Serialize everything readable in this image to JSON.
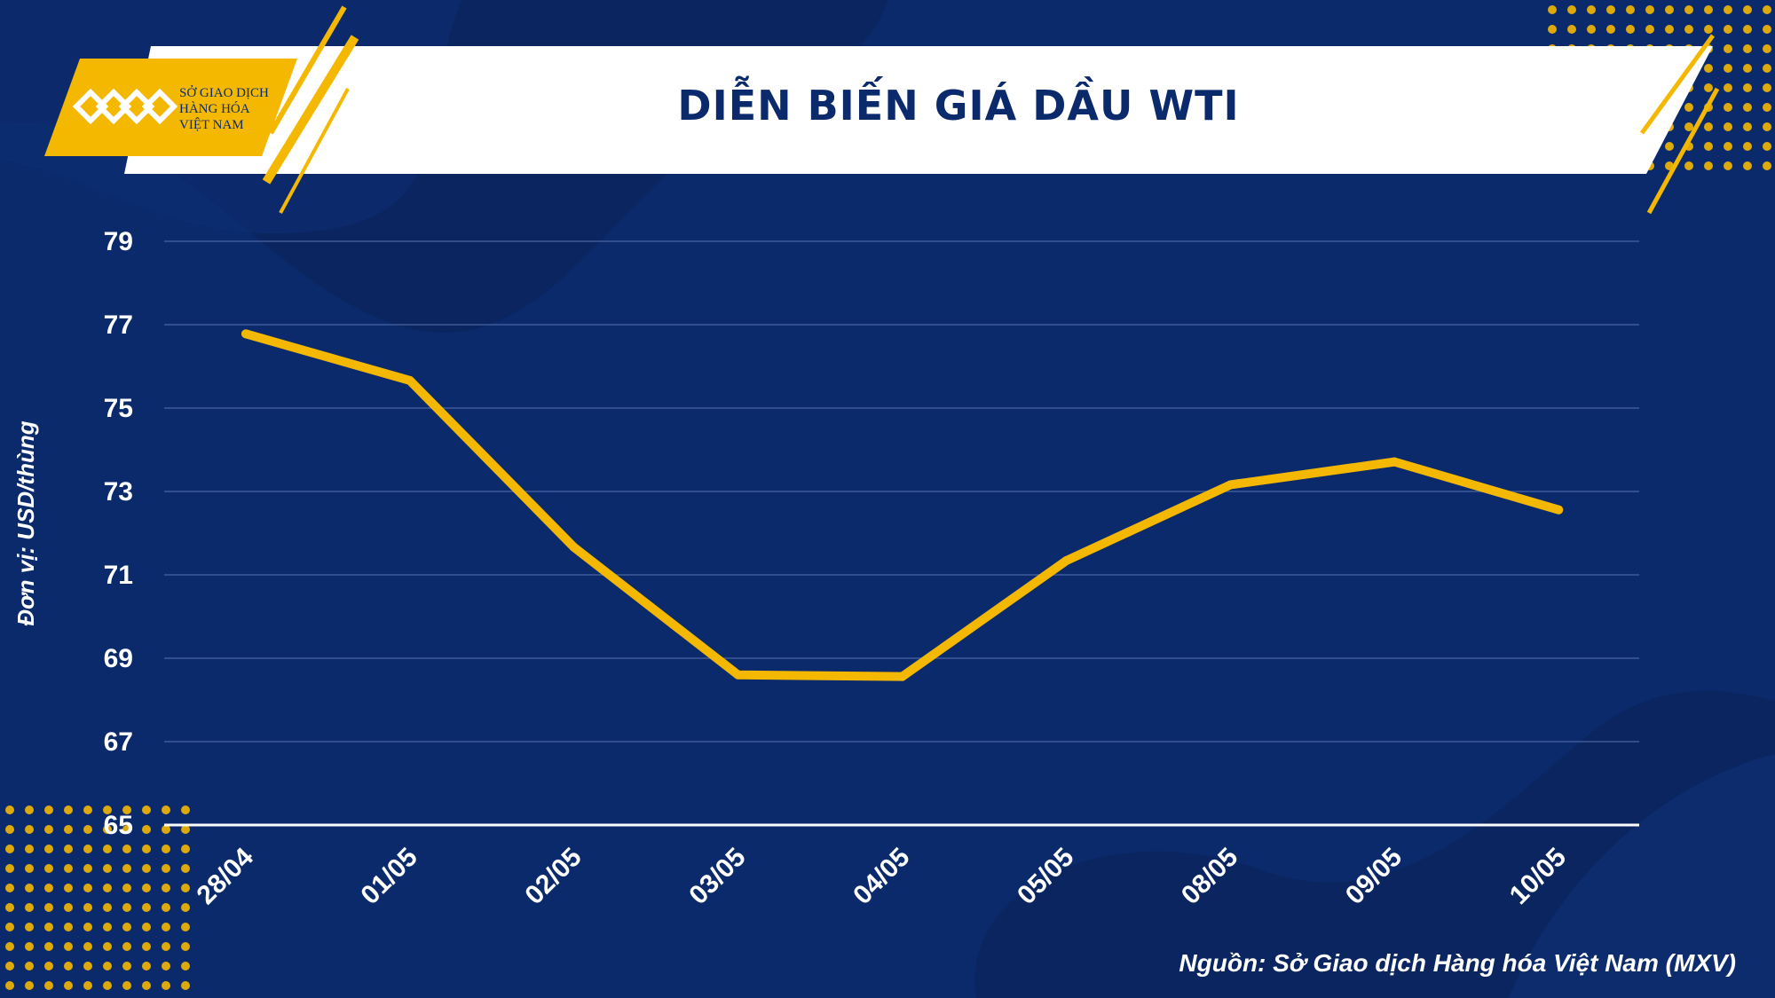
{
  "logo": {
    "line1": "SỞ GIAO DỊCH",
    "line2": "HÀNG HÓA",
    "line3": "VIỆT NAM"
  },
  "title": "DIỄN BIẾN GIÁ DẦU WTI",
  "source": "Nguồn: Sở Giao dịch Hàng hóa Việt Nam (MXV)",
  "colors": {
    "background": "#0b2a6b",
    "accent": "#f5b800",
    "line": "#f5b800",
    "banner": "#ffffff",
    "title_text": "#0b2a6b"
  },
  "chart_data": {
    "type": "line",
    "title": "DIỄN BIẾN GIÁ DẦU WTI",
    "ylabel": "Đơn vị: USD/thùng",
    "xlabel": "",
    "categories": [
      "28/04",
      "01/05",
      "02/05",
      "03/05",
      "04/05",
      "05/05",
      "08/05",
      "09/05",
      "10/05"
    ],
    "series": [
      {
        "values": [
          76.78,
          75.66,
          71.66,
          68.6,
          68.56,
          71.34,
          73.16,
          73.71,
          72.56
        ]
      }
    ],
    "ylim": [
      65,
      79
    ],
    "yticks": [
      "65",
      "67",
      "69",
      "71",
      "73",
      "75",
      "77",
      "79"
    ],
    "grid": true
  }
}
